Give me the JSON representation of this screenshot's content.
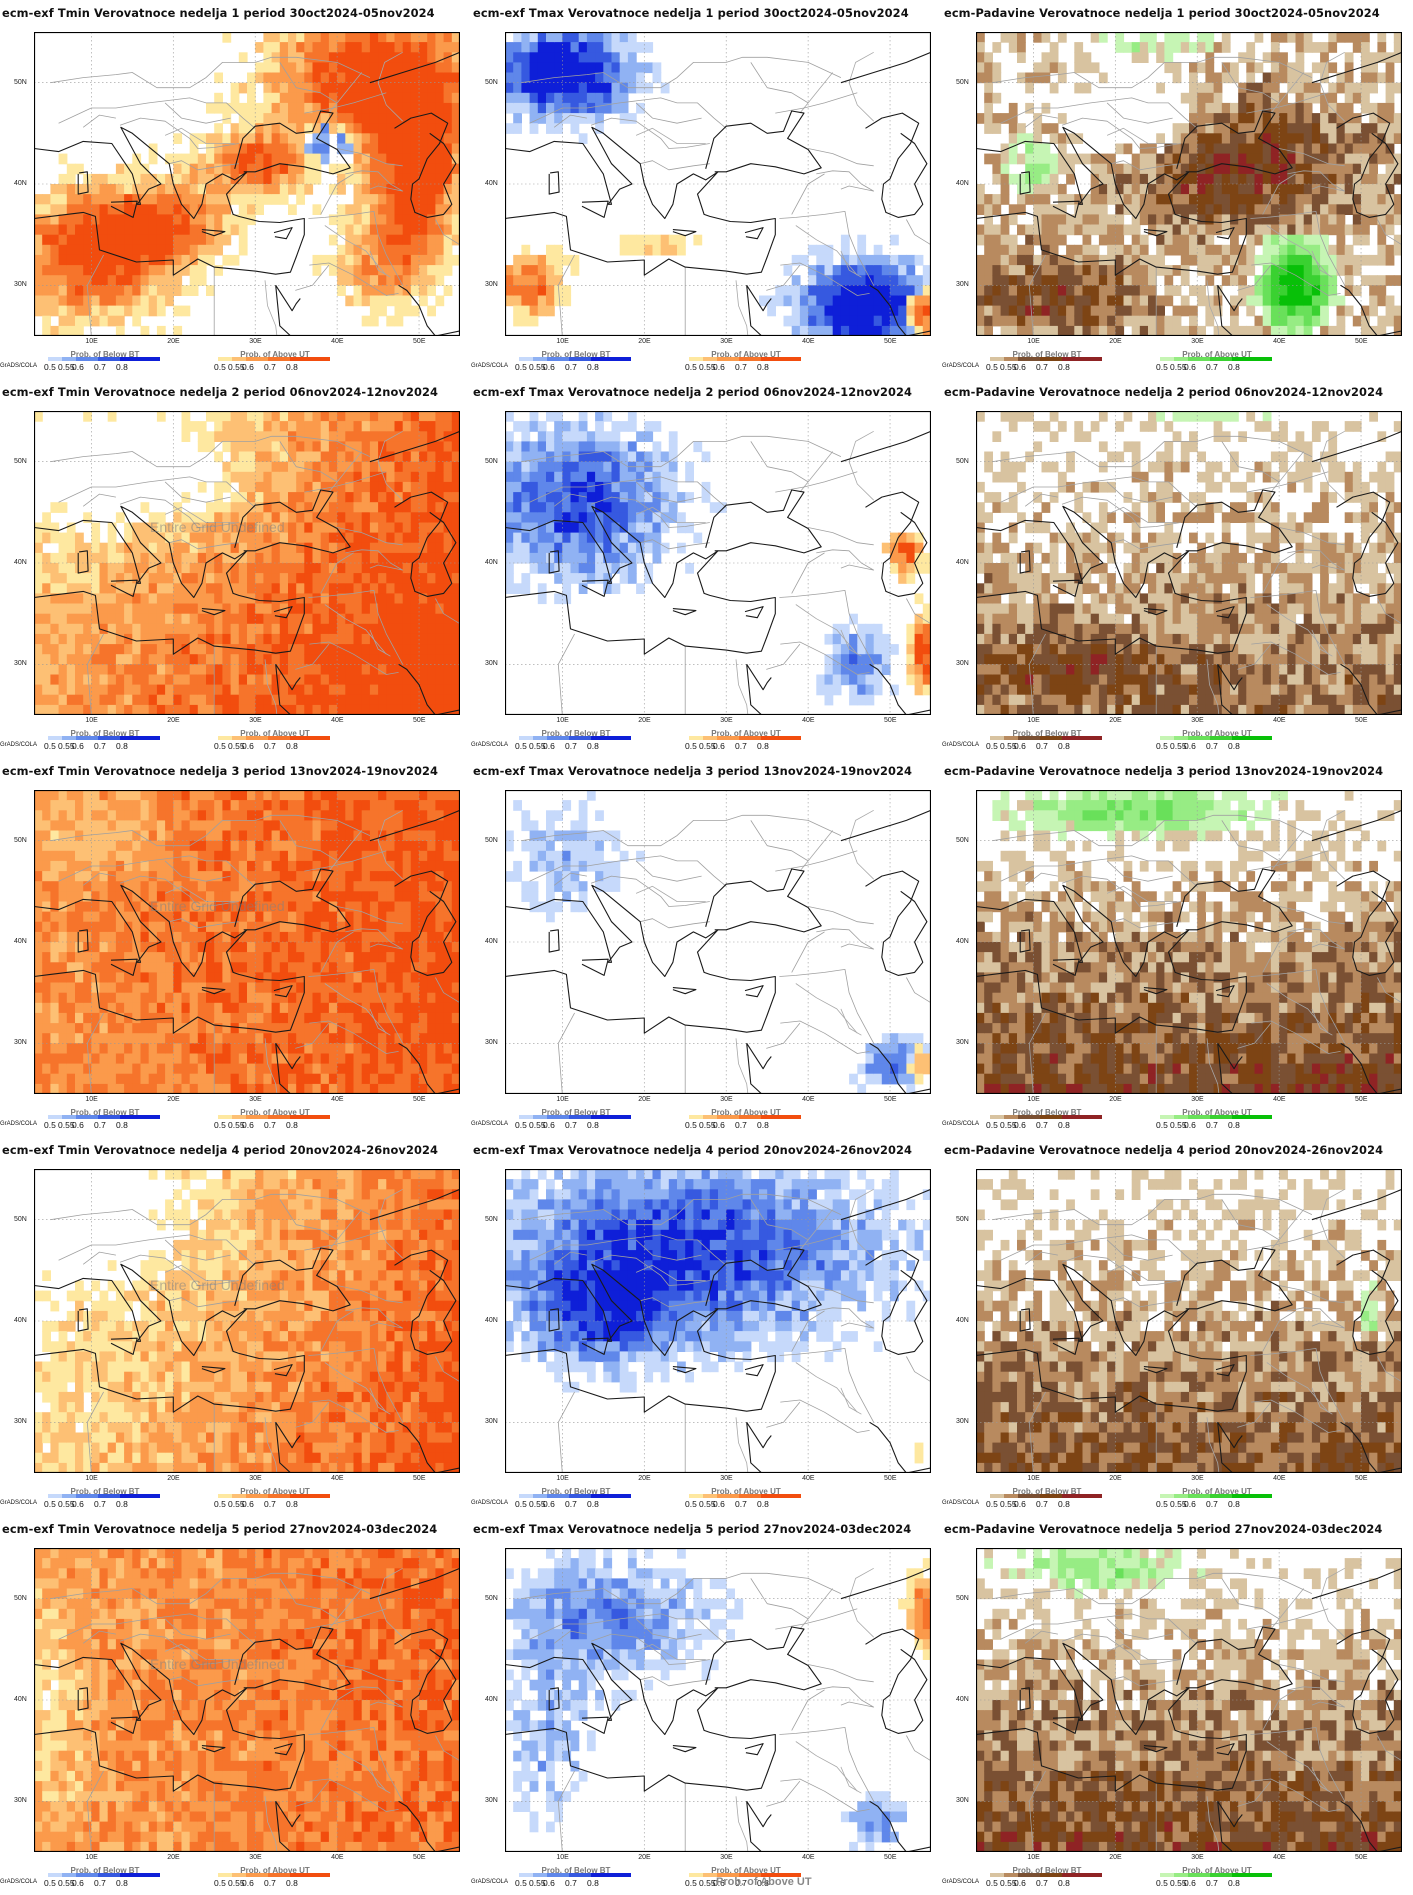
{
  "axis": {
    "lon_ticks": [
      "10E",
      "20E",
      "30E",
      "40E",
      "50E"
    ],
    "lat_ticks": [
      "50N",
      "40N",
      "30N"
    ]
  },
  "legend": {
    "ticks": [
      "0.5",
      "0.55",
      "0.6",
      "0.7",
      "0.8"
    ],
    "below_label": "Prob. of Below BT",
    "above_label": "Prob. of Above UT",
    "credit": "GrADS/COLA"
  },
  "overlay_text": "Entire Grid Undefined",
  "bottom_note": "Prob. of Above UT",
  "palettes": {
    "tmin": [
      "#fee8a0",
      "#fdc074",
      "#fb9a4b",
      "#f6742b",
      "#f24d0e"
    ],
    "tmax": [
      "#c6d9fb",
      "#90b2f3",
      "#5f87ea",
      "#3659e0",
      "#0e1fd8"
    ],
    "precip_dry": [
      "#d8c3a0",
      "#b88a5f",
      "#7a5033",
      "#7d4414",
      "#8f2324"
    ],
    "precip_wet": [
      "#c6f5b4",
      "#97ec84",
      "#69e05a",
      "#3ad131",
      "#08c008"
    ],
    "tmin_below": [
      "#c6d9fb",
      "#90b2f3",
      "#5f87ea",
      "#3659e0",
      "#0e1fd8"
    ],
    "tmax_above": [
      "#fee8a0",
      "#fdc074",
      "#fb9a4b",
      "#f6742b",
      "#f24d0e"
    ]
  },
  "panels": [
    {
      "title": "ecm-exf Tmin Verovatnoce nedelja 1 period 30oct2024-05nov2024",
      "variable": "tmin",
      "week": 1,
      "undefined_label": false
    },
    {
      "title": "ecm-exf Tmax Verovatnoce nedelja 1 period 30oct2024-05nov2024",
      "variable": "tmax",
      "week": 1,
      "undefined_label": false
    },
    {
      "title": "ecm-Padavine Verovatnoce nedelja 1 period 30oct2024-05nov2024",
      "variable": "precip",
      "week": 1,
      "undefined_label": false
    },
    {
      "title": "ecm-exf Tmin Verovatnoce nedelja 2 period 06nov2024-12nov2024",
      "variable": "tmin",
      "week": 2,
      "undefined_label": true
    },
    {
      "title": "ecm-exf Tmax Verovatnoce nedelja 2 period 06nov2024-12nov2024",
      "variable": "tmax",
      "week": 2,
      "undefined_label": false
    },
    {
      "title": "ecm-Padavine Verovatnoce nedelja 2 period 06nov2024-12nov2024",
      "variable": "precip",
      "week": 2,
      "undefined_label": false
    },
    {
      "title": "ecm-exf Tmin Verovatnoce nedelja 3 period 13nov2024-19nov2024",
      "variable": "tmin",
      "week": 3,
      "undefined_label": true
    },
    {
      "title": "ecm-exf Tmax Verovatnoce nedelja 3 period 13nov2024-19nov2024",
      "variable": "tmax",
      "week": 3,
      "undefined_label": false
    },
    {
      "title": "ecm-Padavine Verovatnoce nedelja 3 period 13nov2024-19nov2024",
      "variable": "precip",
      "week": 3,
      "undefined_label": false
    },
    {
      "title": "ecm-exf Tmin Verovatnoce nedelja 4 period 20nov2024-26nov2024",
      "variable": "tmin",
      "week": 4,
      "undefined_label": true
    },
    {
      "title": "ecm-exf Tmax Verovatnoce nedelja 4 period 20nov2024-26nov2024",
      "variable": "tmax",
      "week": 4,
      "undefined_label": false
    },
    {
      "title": "ecm-Padavine Verovatnoce nedelja 4 period 20nov2024-26nov2024",
      "variable": "precip",
      "week": 4,
      "undefined_label": false
    },
    {
      "title": "ecm-exf Tmin Verovatnoce nedelja 5 period 27nov2024-03dec2024",
      "variable": "tmin",
      "week": 5,
      "undefined_label": true
    },
    {
      "title": "ecm-exf Tmax Verovatnoce nedelja 5 period 27nov2024-03dec2024",
      "variable": "tmax",
      "week": 5,
      "undefined_label": false
    },
    {
      "title": "ecm-Padavine Verovatnoce nedelja 5 period 27nov2024-03dec2024",
      "variable": "precip",
      "week": 5,
      "undefined_label": false
    }
  ]
}
